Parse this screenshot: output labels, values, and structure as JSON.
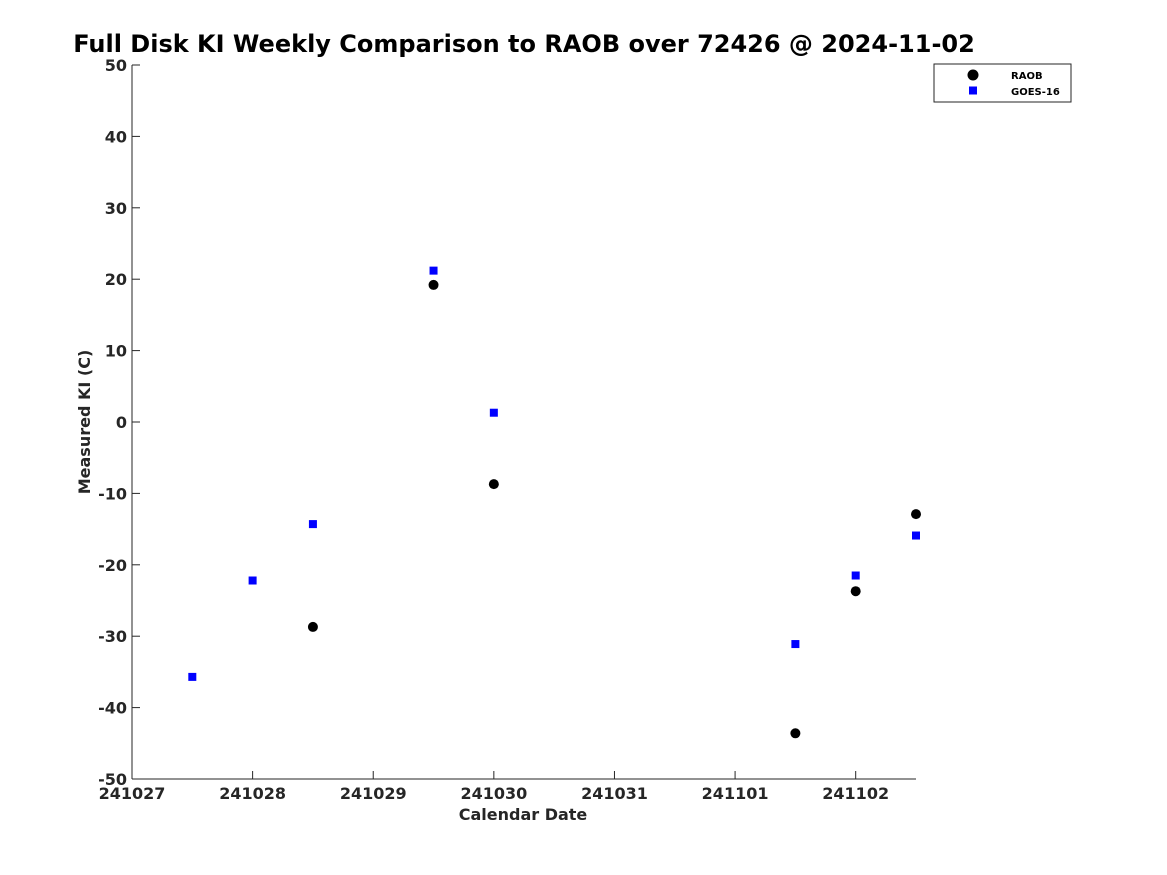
{
  "chart_data": {
    "type": "scatter",
    "title": "Full Disk KI Weekly Comparison to RAOB over 72426 @ 2024-11-02",
    "xlabel": "Calendar Date",
    "ylabel": "Measured KI (C)",
    "xlim": [
      "2024-10-27",
      "2024-11-02T12:00"
    ],
    "ylim": [
      -50,
      50
    ],
    "x_tick_values": [
      "2024-10-27",
      "2024-10-28",
      "2024-10-29",
      "2024-10-30",
      "2024-10-31",
      "2024-11-01",
      "2024-11-02"
    ],
    "x_tick_labels": [
      "241027",
      "241028",
      "241029",
      "241030",
      "241031",
      "241101",
      "241102"
    ],
    "y_ticks": [
      50,
      40,
      30,
      20,
      10,
      0,
      -10,
      -20,
      -30,
      -40,
      -50
    ],
    "grid": false,
    "legend_position": "top-right",
    "series": [
      {
        "name": "RAOB",
        "marker": "circle",
        "color": "#000000",
        "points": [
          {
            "x": "2024-10-28T12:00",
            "y": -28.7
          },
          {
            "x": "2024-10-29T12:00",
            "y": 19.2
          },
          {
            "x": "2024-10-30T00:00",
            "y": -8.7
          },
          {
            "x": "2024-11-01T12:00",
            "y": -43.6
          },
          {
            "x": "2024-11-02T00:00",
            "y": -23.7
          },
          {
            "x": "2024-11-02T12:00",
            "y": -12.9
          }
        ]
      },
      {
        "name": "GOES-16",
        "marker": "square",
        "color": "#0000ff",
        "points": [
          {
            "x": "2024-10-27T12:00",
            "y": -35.7
          },
          {
            "x": "2024-10-28T00:00",
            "y": -22.2
          },
          {
            "x": "2024-10-28T12:00",
            "y": -14.3
          },
          {
            "x": "2024-10-29T12:00",
            "y": 21.2
          },
          {
            "x": "2024-10-30T00:00",
            "y": 1.3
          },
          {
            "x": "2024-11-01T12:00",
            "y": -31.1
          },
          {
            "x": "2024-11-02T00:00",
            "y": -21.5
          },
          {
            "x": "2024-11-02T12:00",
            "y": -15.9
          }
        ]
      }
    ]
  }
}
